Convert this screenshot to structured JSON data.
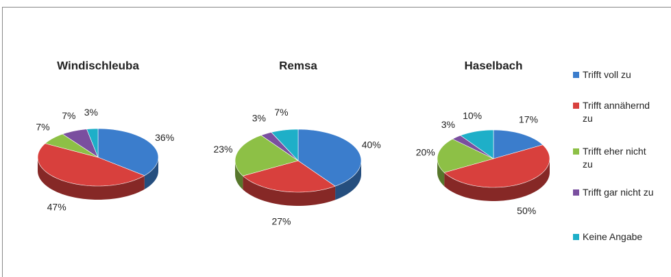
{
  "legend": {
    "labels": [
      "Trifft voll zu",
      "Trifft annähernd zu",
      "Trifft eher nicht zu",
      "Trifft gar nicht zu",
      "Keine Angabe"
    ],
    "colors": [
      "#3b7dcc",
      "#d8403d",
      "#8dc046",
      "#7a4f9f",
      "#1eafc8"
    ]
  },
  "chart_data": [
    {
      "type": "pie",
      "title": "Windischleuba",
      "values": [
        36,
        47,
        7,
        7,
        3
      ],
      "value_labels": [
        "36%",
        "47%",
        "7%",
        "7%",
        "3%"
      ]
    },
    {
      "type": "pie",
      "title": "Remsa",
      "values": [
        40,
        27,
        23,
        3,
        7
      ],
      "value_labels": [
        "40%",
        "27%",
        "23%",
        "3%",
        "7%"
      ]
    },
    {
      "type": "pie",
      "title": "Haselbach",
      "values": [
        17,
        50,
        20,
        3,
        10
      ],
      "value_labels": [
        "17%",
        "50%",
        "20%",
        "3%",
        "10%"
      ]
    }
  ]
}
